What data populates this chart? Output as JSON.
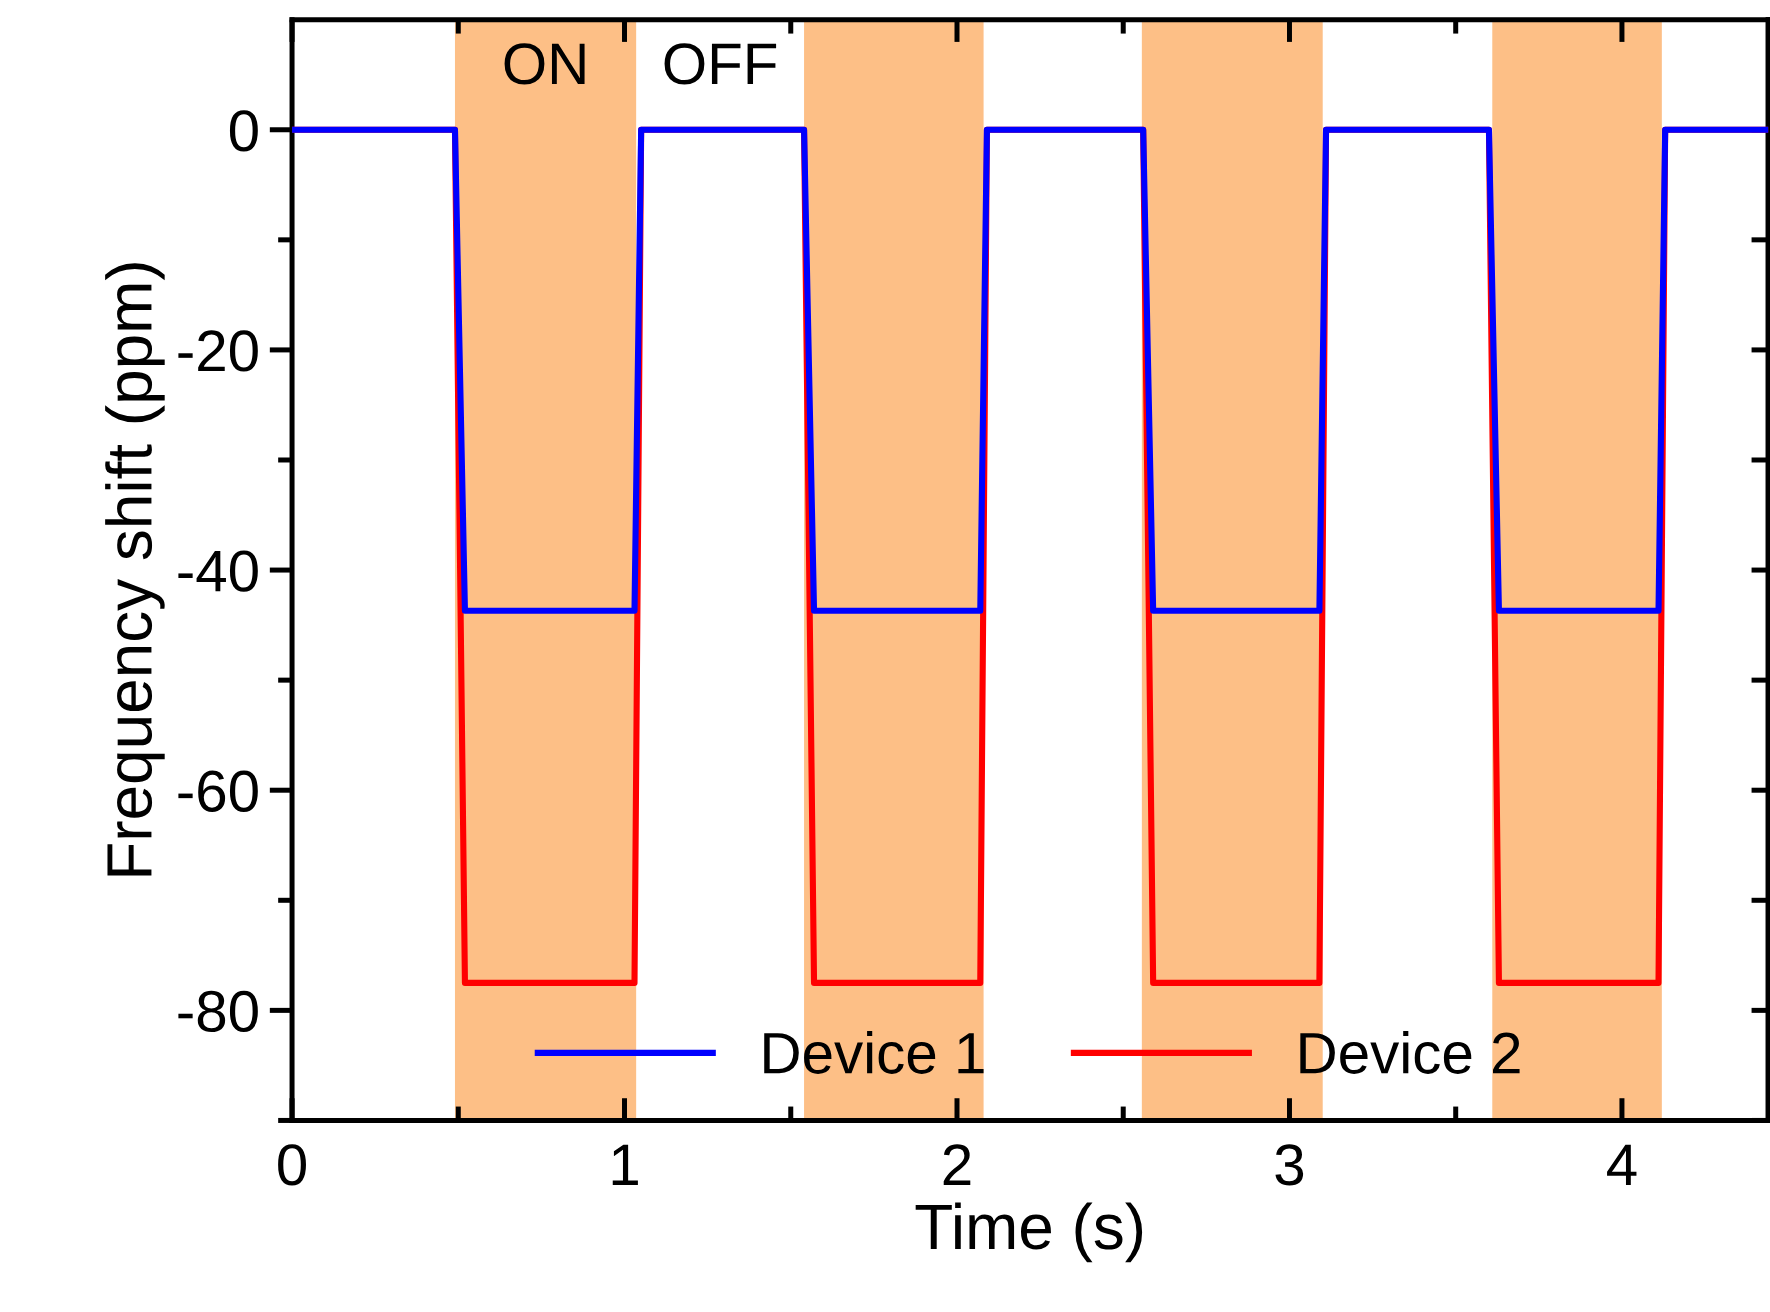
{
  "chart_data": {
    "type": "line",
    "xlabel": "Time (s)",
    "ylabel": "Frequency shift (ppm)",
    "xlim": [
      0,
      4.44
    ],
    "xticks": [
      0,
      1,
      2,
      3,
      4
    ],
    "ylim": [
      -90,
      10
    ],
    "yticks": [
      -80,
      -60,
      -40,
      -20,
      0
    ],
    "x": [
      0,
      0.49,
      0.52,
      1.03,
      1.05,
      1.54,
      1.57,
      2.07,
      2.09,
      2.56,
      2.59,
      3.09,
      3.11,
      3.6,
      3.63,
      4.11,
      4.13,
      4.44
    ],
    "series": [
      {
        "name": "Device 1",
        "color": "#0000ff",
        "values": [
          0,
          0,
          -43.7,
          -43.7,
          0,
          0,
          -43.7,
          -43.7,
          0,
          0,
          -43.7,
          -43.7,
          0,
          0,
          -43.7,
          -43.7,
          0,
          0
        ]
      },
      {
        "name": "Device 2",
        "color": "#ff0000",
        "values": [
          0,
          0,
          -77.5,
          -77.5,
          0,
          0,
          -77.5,
          -77.5,
          0,
          0,
          -77.5,
          -77.5,
          0,
          0,
          -77.5,
          -77.5,
          0,
          0
        ]
      }
    ],
    "bands": [
      {
        "axis": "x",
        "from": 0.49,
        "to": 1.035,
        "label": "ON",
        "color": "#fdbf86"
      },
      {
        "axis": "x",
        "from": 1.54,
        "to": 2.08,
        "color": "#fdbf86"
      },
      {
        "axis": "x",
        "from": 2.556,
        "to": 3.1,
        "color": "#fdbf86"
      },
      {
        "axis": "x",
        "from": 3.61,
        "to": 4.12,
        "color": "#fdbf86"
      }
    ],
    "annotations": [
      "OFF"
    ],
    "legend": "bottom",
    "grid": false,
    "marker": "none",
    "line_style": "solid"
  }
}
